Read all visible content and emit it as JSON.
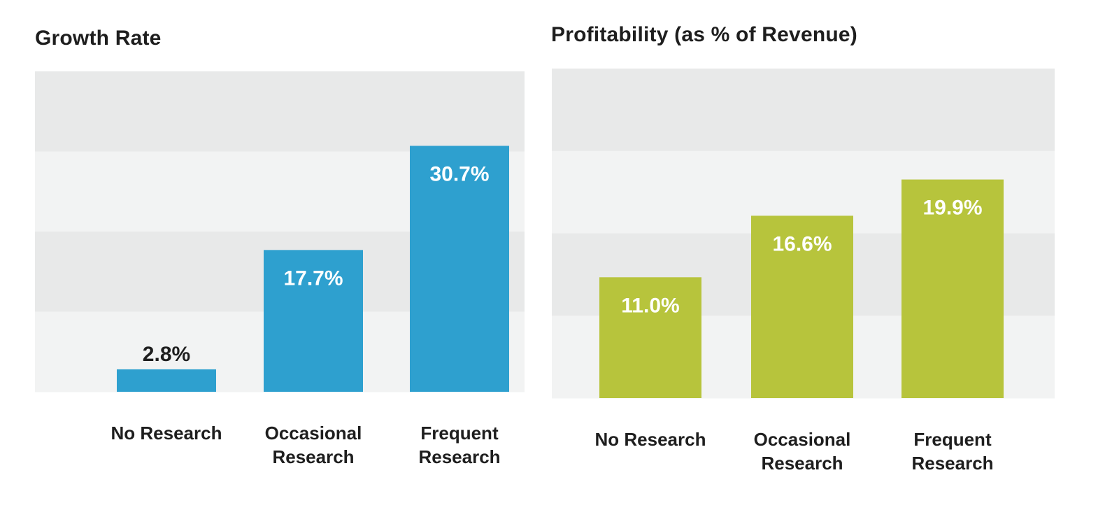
{
  "colors": {
    "band_dark": "#e8e9e9",
    "band_light": "#f2f3f3",
    "growth_bar": "#2ea0cf",
    "profit_bar": "#b7c43c",
    "label_inside": "#ffffff",
    "label_outside": "#1e1e1e"
  },
  "chart_data": [
    {
      "type": "bar",
      "title": "Growth Rate",
      "xlabel": "",
      "ylabel": "",
      "categories": [
        "No Research",
        "Occasional Research",
        "Frequent Research"
      ],
      "tick_lines": [
        [
          "No Research"
        ],
        [
          "Occasional",
          "Research"
        ],
        [
          "Frequent",
          "Research"
        ]
      ],
      "values": [
        2.8,
        17.7,
        30.7
      ],
      "value_labels": [
        "2.8%",
        "17.7%",
        "30.7%"
      ],
      "ylim": [
        0,
        40
      ],
      "grid": "alternating horizontal bands",
      "legend": "none",
      "color_key": "growth_bar"
    },
    {
      "type": "bar",
      "title": "Profitability (as % of Revenue)",
      "xlabel": "",
      "ylabel": "",
      "categories": [
        "No Research",
        "Occasional Research",
        "Frequent Research"
      ],
      "tick_lines": [
        [
          "No Research"
        ],
        [
          "Occasional",
          "Research"
        ],
        [
          "Frequent",
          "Research"
        ]
      ],
      "values": [
        11.0,
        16.6,
        19.9
      ],
      "value_labels": [
        "11.0%",
        "16.6%",
        "19.9%"
      ],
      "ylim": [
        0,
        30
      ],
      "grid": "alternating horizontal bands",
      "legend": "none",
      "color_key": "profit_bar"
    }
  ]
}
